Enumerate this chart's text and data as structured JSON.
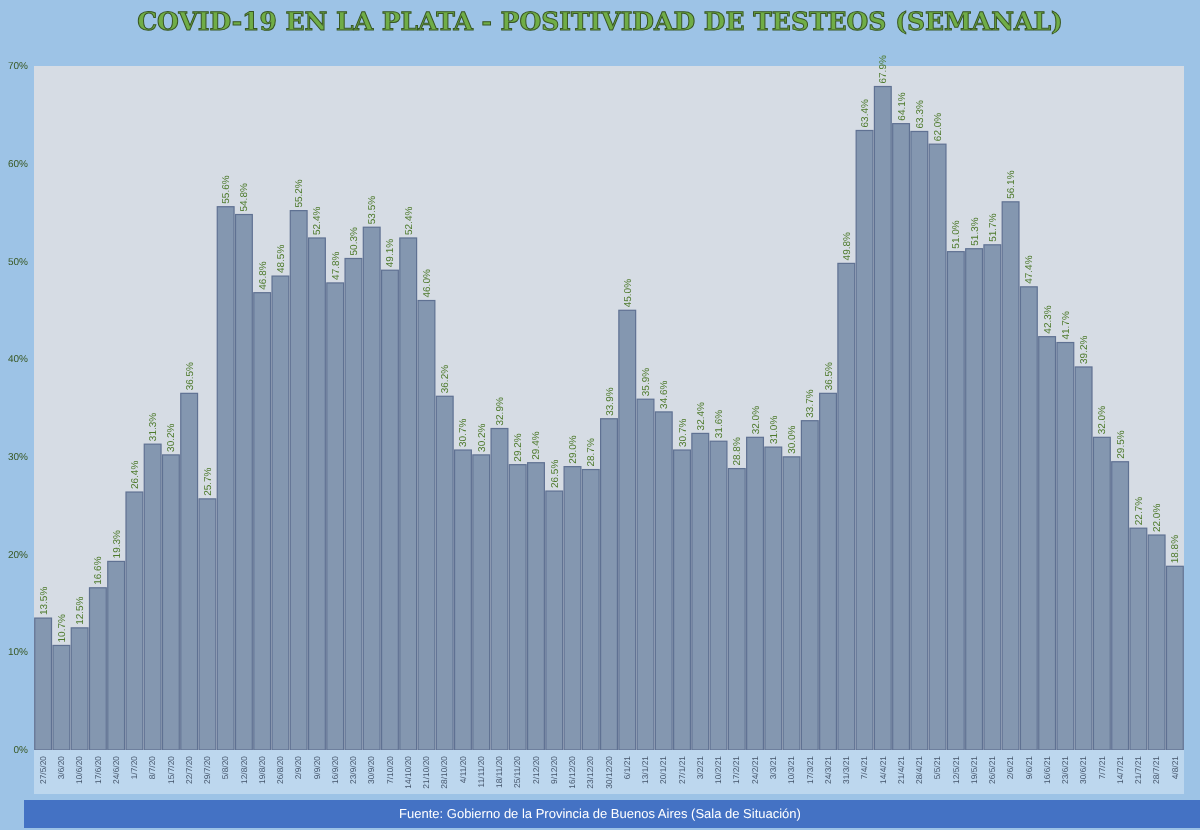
{
  "chart_data": {
    "type": "bar",
    "title": "COVID-19 EN LA PLATA - POSITIVIDAD DE TESTEOS (SEMANAL)",
    "categories": [
      "27/5/20",
      "3/6/20",
      "10/6/20",
      "17/6/20",
      "24/6/20",
      "1/7/20",
      "8/7/20",
      "15/7/20",
      "22/7/20",
      "29/7/20",
      "5/8/20",
      "12/8/20",
      "19/8/20",
      "26/8/20",
      "2/9/20",
      "9/9/20",
      "16/9/20",
      "23/9/20",
      "30/9/20",
      "7/10/20",
      "14/10/20",
      "21/10/20",
      "28/10/20",
      "4/11/20",
      "11/11/20",
      "18/11/20",
      "25/11/20",
      "2/12/20",
      "9/12/20",
      "16/12/20",
      "23/12/20",
      "30/12/20",
      "6/1/21",
      "13/1/21",
      "20/1/21",
      "27/1/21",
      "3/2/21",
      "10/2/21",
      "17/2/21",
      "24/2/21",
      "3/3/21",
      "10/3/21",
      "17/3/21",
      "24/3/21",
      "31/3/21",
      "7/4/21",
      "14/4/21",
      "21/4/21",
      "28/4/21",
      "5/5/21",
      "12/5/21",
      "19/5/21",
      "26/5/21",
      "2/6/21",
      "9/6/21",
      "16/6/21",
      "23/6/21",
      "30/6/21",
      "7/7/21",
      "14/7/21",
      "21/7/21",
      "28/7/21",
      "4/8/21"
    ],
    "values": [
      13.5,
      10.7,
      12.5,
      16.6,
      19.3,
      26.4,
      31.3,
      30.2,
      36.5,
      25.7,
      55.6,
      54.8,
      46.8,
      48.5,
      55.2,
      52.4,
      47.8,
      50.3,
      53.5,
      49.1,
      52.4,
      46.0,
      36.2,
      30.7,
      30.2,
      32.9,
      29.2,
      29.4,
      26.5,
      29.0,
      28.7,
      33.9,
      45.0,
      35.9,
      34.6,
      30.7,
      32.4,
      31.6,
      28.8,
      32.0,
      31.0,
      30.0,
      33.7,
      36.5,
      49.8,
      63.4,
      67.9,
      64.1,
      63.3,
      62.0,
      51.0,
      51.3,
      51.7,
      56.1,
      47.4,
      42.3,
      41.7,
      39.2,
      32.0,
      29.5,
      22.7,
      22.0,
      18.8
    ],
    "color": "#8497b0",
    "ylim": [
      0,
      70
    ],
    "yticks": [
      {
        "value": 0,
        "label": "0%"
      },
      {
        "value": 10,
        "label": "10%"
      },
      {
        "value": 20,
        "label": "20%"
      },
      {
        "value": 30,
        "label": "30%"
      },
      {
        "value": 40,
        "label": "40%"
      },
      {
        "value": 50,
        "label": "50%"
      },
      {
        "value": 60,
        "label": "60%"
      },
      {
        "value": 70,
        "label": "70%"
      }
    ],
    "value_labels": [
      "13.5%",
      "10.7%",
      "12.5%",
      "16.6%",
      "19.3%",
      "26.4%",
      "31.3%",
      "30.2%",
      "36.5%",
      "25.7%",
      "55.6%",
      "54.8%",
      "46.8%",
      "48.5%",
      "55.2%",
      "52.4%",
      "47.8%",
      "50.3%",
      "53.5%",
      "49.1%",
      "52.4%",
      "46.0%",
      "36.2%",
      "30.7%",
      "30.2%",
      "32.9%",
      "29.2%",
      "29.4%",
      "26.5%",
      "29.0%",
      "28.7%",
      "33.9%",
      "45.0%",
      "35.9%",
      "34.6%",
      "30.7%",
      "32.4%",
      "31.6%",
      "28.8%",
      "32.0%",
      "31.0%",
      "30.0%",
      "33.7%",
      "36.5%",
      "49.8%",
      "63.4%",
      "67.9%",
      "64.1%",
      "63.3%",
      "62.0%",
      "51.0%",
      "51.3%",
      "51.7%",
      "56.1%",
      "47.4%",
      "42.3%",
      "41.7%",
      "39.2%",
      "32.0%",
      "29.5%",
      "22.7%",
      "22.0%",
      "18.8%"
    ],
    "annotations": [
      "Fuente: Gobierno de la Provincia de Buenos Aires (Sala de Situación)"
    ]
  }
}
